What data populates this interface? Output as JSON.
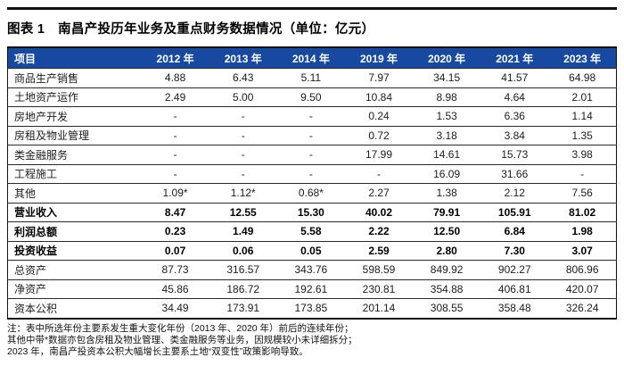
{
  "title": "图表 1　南昌产投历年业务及重点财务数据情况（单位：亿元）",
  "colors": {
    "header_bg": "#1749A0",
    "header_text": "#FFFFFF",
    "rule": "#111111"
  },
  "table": {
    "columns": [
      "项目",
      "2012 年",
      "2013 年",
      "2014 年",
      "2019 年",
      "2020 年",
      "2021 年",
      "2023 年"
    ],
    "rows": [
      {
        "label": "商品生产销售",
        "bold": false,
        "values": [
          "4.88",
          "6.43",
          "5.11",
          "7.97",
          "34.15",
          "41.57",
          "64.98"
        ]
      },
      {
        "label": "土地资产运作",
        "bold": false,
        "values": [
          "2.49",
          "5.00",
          "9.50",
          "10.84",
          "8.98",
          "4.64",
          "2.01"
        ]
      },
      {
        "label": "房地产开发",
        "bold": false,
        "values": [
          "-",
          "-",
          "-",
          "0.24",
          "1.53",
          "6.36",
          "1.14"
        ]
      },
      {
        "label": "房租及物业管理",
        "bold": false,
        "values": [
          "-",
          "-",
          "-",
          "0.72",
          "3.18",
          "3.84",
          "1.35"
        ]
      },
      {
        "label": "类金融服务",
        "bold": false,
        "values": [
          "-",
          "-",
          "-",
          "17.99",
          "14.61",
          "15.73",
          "3.98"
        ]
      },
      {
        "label": "工程施工",
        "bold": false,
        "values": [
          "-",
          "-",
          "-",
          "-",
          "16.09",
          "31.66",
          "-"
        ]
      },
      {
        "label": "其他",
        "bold": false,
        "values": [
          "1.09*",
          "1.12*",
          "0.68*",
          "2.27",
          "1.38",
          "2.12",
          "7.56"
        ]
      },
      {
        "label": "营业收入",
        "bold": true,
        "values": [
          "8.47",
          "12.55",
          "15.30",
          "40.02",
          "79.91",
          "105.91",
          "81.02"
        ]
      },
      {
        "label": "利润总额",
        "bold": true,
        "values": [
          "0.23",
          "1.49",
          "5.58",
          "2.22",
          "12.50",
          "6.84",
          "1.98"
        ]
      },
      {
        "label": "投资收益",
        "bold": true,
        "values": [
          "0.07",
          "0.06",
          "0.05",
          "2.59",
          "2.80",
          "7.30",
          "3.07"
        ]
      },
      {
        "label": "总资产",
        "bold": false,
        "values": [
          "87.73",
          "316.57",
          "343.76",
          "598.59",
          "849.92",
          "902.27",
          "806.96"
        ]
      },
      {
        "label": "净资产",
        "bold": false,
        "values": [
          "45.86",
          "186.72",
          "192.61",
          "230.81",
          "354.88",
          "406.81",
          "420.07"
        ]
      },
      {
        "label": "资本公积",
        "bold": false,
        "values": [
          "34.49",
          "173.91",
          "173.85",
          "201.14",
          "308.55",
          "358.48",
          "326.24"
        ]
      }
    ]
  },
  "notes": [
    "注：表中所选年份主要系发生重大变化年份（2013 年、2020 年）前后的连续年份；",
    "其他中带*数据亦包含房租及物业管理、类金融服务等业务，因规模较小未详细拆分；",
    "2023 年，南昌产投资本公积大幅增长主要系土地“双变性”政策影响导致。"
  ]
}
